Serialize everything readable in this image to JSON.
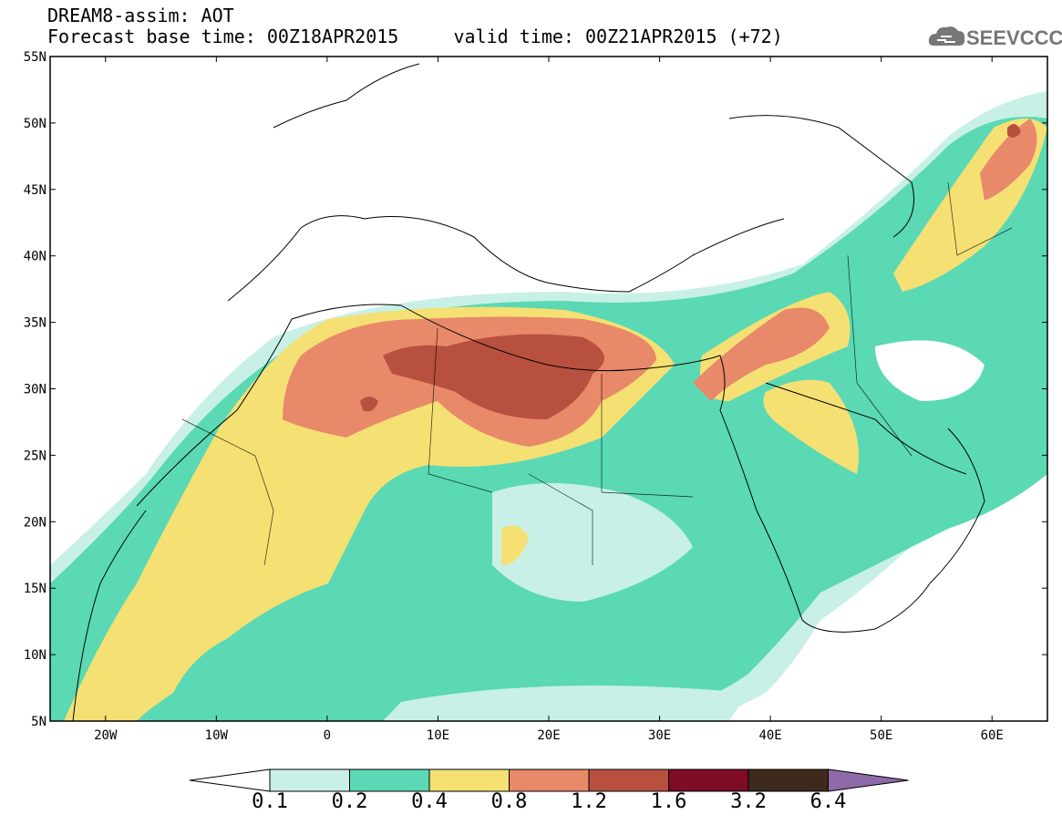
{
  "title": {
    "line1": "DREAM8-assim: AOT",
    "line2": "Forecast base time: 00Z18APR2015     valid time: 00Z21APR2015 (+72)"
  },
  "logo": {
    "text": "SEEVCCC",
    "icon": "cloud-icon"
  },
  "map": {
    "lon_range": [
      -25,
      65
    ],
    "lat_range": [
      5,
      55
    ],
    "lat_labels": [
      "55N",
      "50N",
      "45N",
      "40N",
      "35N",
      "30N",
      "25N",
      "20N",
      "15N",
      "10N",
      "5N"
    ],
    "lon_labels": [
      "20W",
      "10W",
      "0",
      "10E",
      "20E",
      "30E",
      "40E",
      "50E",
      "60E"
    ]
  },
  "colorbar": {
    "labels": [
      "0.1",
      "0.2",
      "0.4",
      "0.8",
      "1.2",
      "1.6",
      "3.2",
      "6.4"
    ],
    "colors": [
      "#ffffff",
      "#c8f0e6",
      "#5ad9b4",
      "#f5e074",
      "#e8896a",
      "#b8503f",
      "#7d0c24",
      "#3d2a1a",
      "#8e6aa8"
    ]
  }
}
